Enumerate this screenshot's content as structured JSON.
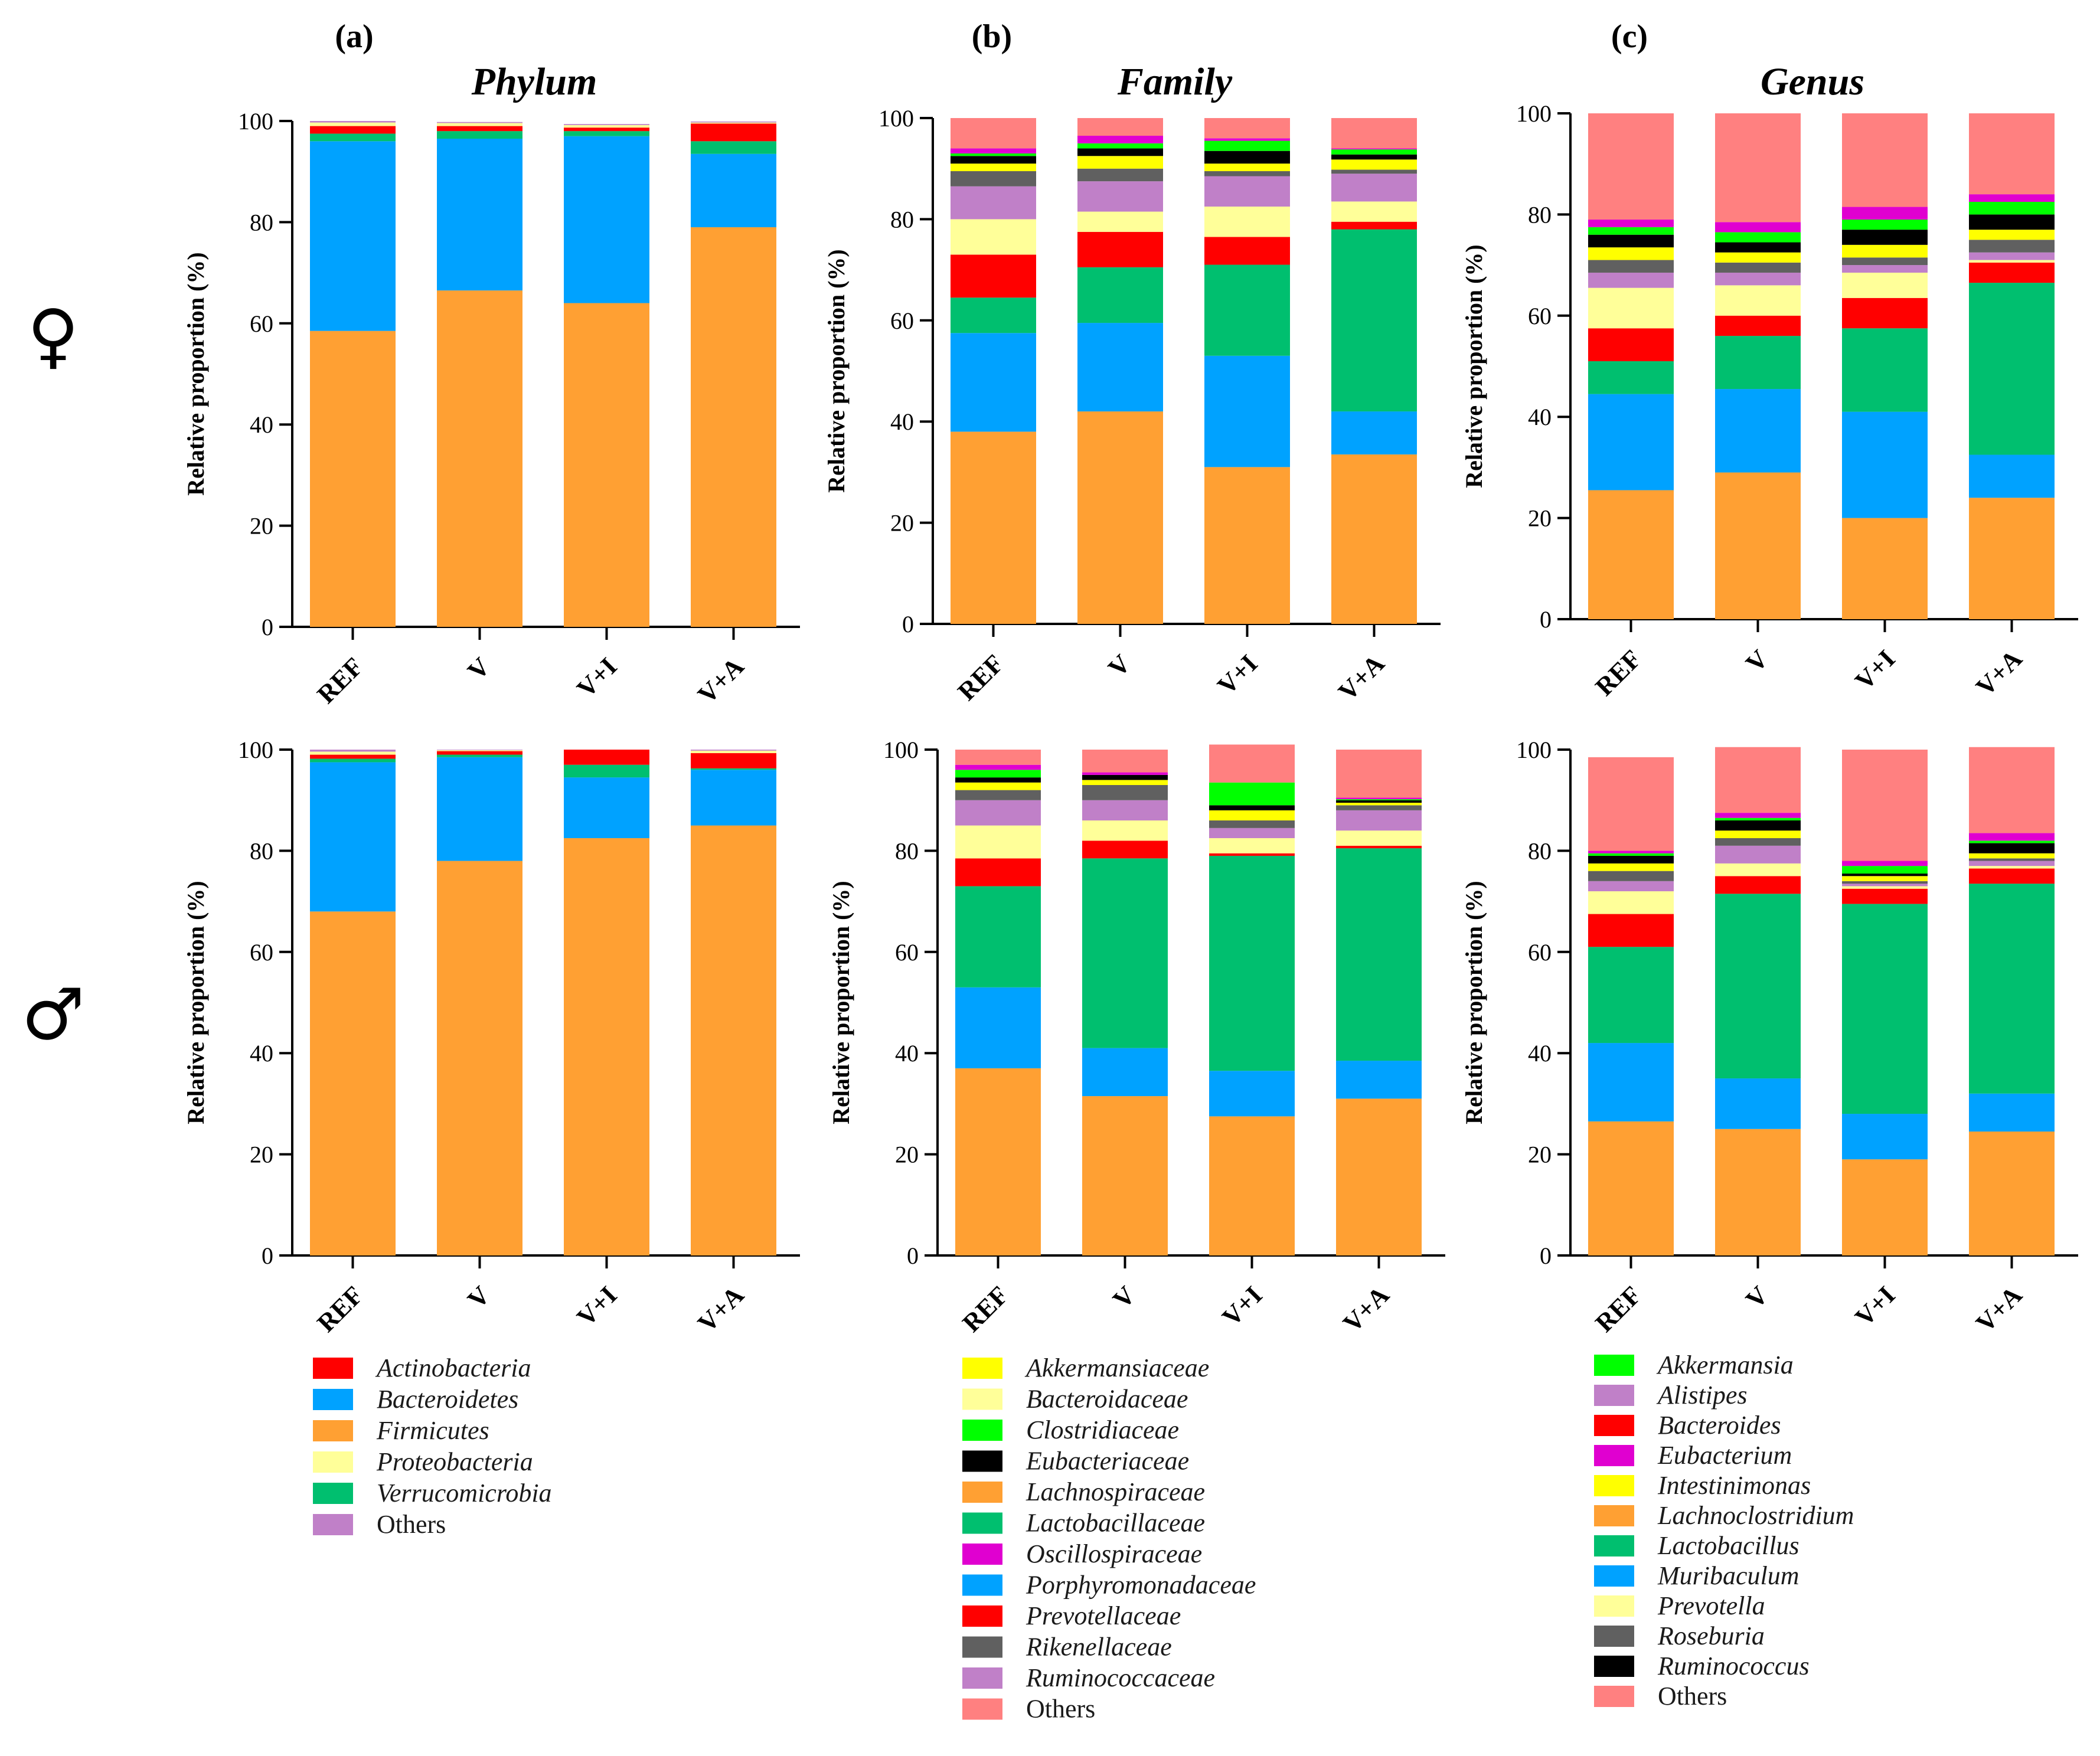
{
  "figure": {
    "panel_labels": [
      "(a)",
      "(b)",
      "(c)"
    ],
    "sex_symbols": [
      "♀",
      "♂"
    ]
  },
  "chart_data": [
    {
      "type": "bar",
      "stacked": true,
      "id": "phylum-female",
      "title": "Phylum",
      "panel": "(a)",
      "sex": "female",
      "ylabel": "Relative proportion (%)",
      "ylim": [
        0,
        100
      ],
      "yticks": [
        0,
        20,
        40,
        60,
        80,
        100
      ],
      "categories": [
        "REF",
        "V",
        "V+I",
        "V+A"
      ],
      "series": [
        {
          "name": "Firmicutes",
          "color": "#FFA033",
          "values": [
            58.5,
            66.5,
            64.0,
            79.0
          ]
        },
        {
          "name": "Bacteroidetes",
          "color": "#00A2FF",
          "values": [
            37.5,
            30.0,
            33.0,
            14.5
          ]
        },
        {
          "name": "Verrucomicrobia",
          "color": "#00BF6F",
          "values": [
            1.5,
            1.5,
            1.0,
            2.5
          ]
        },
        {
          "name": "Actinobacteria",
          "color": "#FF0000",
          "values": [
            1.5,
            1.0,
            0.7,
            3.5
          ]
        },
        {
          "name": "Proteobacteria",
          "color": "#FFFF99",
          "values": [
            0.7,
            0.6,
            0.5,
            0.2
          ]
        },
        {
          "name": "Others",
          "color": "#C080C8",
          "values": [
            0.3,
            0.2,
            0.2,
            0.2
          ]
        }
      ]
    },
    {
      "type": "bar",
      "stacked": true,
      "id": "family-female",
      "title": "Family",
      "panel": "(b)",
      "sex": "female",
      "ylabel": "Relative proportion (%)",
      "ylim": [
        0,
        100
      ],
      "yticks": [
        0,
        20,
        40,
        60,
        80,
        100
      ],
      "categories": [
        "REF",
        "V",
        "V+I",
        "V+A"
      ],
      "series": [
        {
          "name": "Lachnospiraceae",
          "color": "#FFA033",
          "values": [
            38.0,
            42.0,
            31.0,
            33.5
          ]
        },
        {
          "name": "Porphyromonadaceae",
          "color": "#00A2FF",
          "values": [
            19.5,
            17.5,
            22.0,
            8.5
          ]
        },
        {
          "name": "Lactobacillaceae",
          "color": "#00BF6F",
          "values": [
            7.0,
            11.0,
            18.0,
            36.0
          ]
        },
        {
          "name": "Prevotellaceae",
          "color": "#FF0000",
          "values": [
            8.5,
            7.0,
            5.5,
            1.5
          ]
        },
        {
          "name": "Bacteroidaceae",
          "color": "#FFFF99",
          "values": [
            7.0,
            4.0,
            6.0,
            4.0
          ]
        },
        {
          "name": "Ruminococcaceae",
          "color": "#C080C8",
          "values": [
            6.5,
            6.0,
            6.0,
            5.5
          ]
        },
        {
          "name": "Rikenellaceae",
          "color": "#606060",
          "values": [
            3.0,
            2.5,
            1.0,
            0.8
          ]
        },
        {
          "name": "Akkermansiaceae",
          "color": "#FFFF00",
          "values": [
            1.5,
            2.5,
            1.5,
            2.0
          ]
        },
        {
          "name": "Eubacteriaceae",
          "color": "#000000",
          "values": [
            1.5,
            1.5,
            2.5,
            1.0
          ]
        },
        {
          "name": "Clostridiaceae",
          "color": "#00FF00",
          "values": [
            0.5,
            1.0,
            2.0,
            1.0
          ]
        },
        {
          "name": "Oscillospiraceae",
          "color": "#E000D0",
          "values": [
            1.0,
            1.5,
            0.5,
            0.2
          ]
        },
        {
          "name": "Others",
          "color": "#FF8080",
          "values": [
            6.0,
            3.5,
            4.0,
            6.0
          ]
        }
      ]
    },
    {
      "type": "bar",
      "stacked": true,
      "id": "genus-female",
      "title": "Genus",
      "panel": "(c)",
      "sex": "female",
      "ylabel": "Relative proportion (%)",
      "ylim": [
        0,
        100
      ],
      "yticks": [
        0,
        20,
        40,
        60,
        80,
        100
      ],
      "categories": [
        "REF",
        "V",
        "V+I",
        "V+A"
      ],
      "series": [
        {
          "name": "Lachnoclostridium",
          "color": "#FFA033",
          "values": [
            25.5,
            29.0,
            20.0,
            24.0
          ]
        },
        {
          "name": "Muribaculum",
          "color": "#00A2FF",
          "values": [
            19.0,
            16.5,
            21.0,
            8.5
          ]
        },
        {
          "name": "Lactobacillus",
          "color": "#00BF6F",
          "values": [
            6.5,
            10.5,
            16.5,
            34.0
          ]
        },
        {
          "name": "Bacteroides",
          "color": "#FF0000",
          "values": [
            6.5,
            4.0,
            6.0,
            4.0
          ]
        },
        {
          "name": "Prevotella",
          "color": "#FFFF99",
          "values": [
            8.0,
            6.0,
            5.0,
            0.5
          ]
        },
        {
          "name": "Alistipes",
          "color": "#C080C8",
          "values": [
            3.0,
            2.5,
            1.5,
            1.5
          ]
        },
        {
          "name": "Roseburia",
          "color": "#606060",
          "values": [
            2.5,
            2.0,
            1.5,
            2.5
          ]
        },
        {
          "name": "Intestinimonas",
          "color": "#FFFF00",
          "values": [
            2.5,
            2.0,
            2.5,
            2.0
          ]
        },
        {
          "name": "Ruminococcus",
          "color": "#000000",
          "values": [
            2.5,
            2.0,
            3.0,
            3.0
          ]
        },
        {
          "name": "Akkermansia",
          "color": "#00FF00",
          "values": [
            1.5,
            2.0,
            2.0,
            2.5
          ]
        },
        {
          "name": "Eubacterium",
          "color": "#E000D0",
          "values": [
            1.5,
            2.0,
            2.5,
            1.5
          ]
        },
        {
          "name": "Others",
          "color": "#FF8080",
          "values": [
            21.0,
            21.5,
            18.5,
            16.0
          ]
        }
      ]
    },
    {
      "type": "bar",
      "stacked": true,
      "id": "phylum-male",
      "title": "",
      "panel": "",
      "sex": "male",
      "ylabel": "Relative proportion (%)",
      "ylim": [
        0,
        100
      ],
      "yticks": [
        0,
        20,
        40,
        60,
        80,
        100
      ],
      "categories": [
        "REF",
        "V",
        "V+I",
        "V+A"
      ],
      "series": [
        {
          "name": "Firmicutes",
          "color": "#FFA033",
          "values": [
            68.0,
            78.0,
            82.5,
            85.0
          ]
        },
        {
          "name": "Bacteroidetes",
          "color": "#00A2FF",
          "values": [
            29.5,
            20.5,
            12.0,
            11.0
          ]
        },
        {
          "name": "Verrucomicrobia",
          "color": "#00BF6F",
          "values": [
            0.7,
            0.5,
            2.5,
            0.3
          ]
        },
        {
          "name": "Actinobacteria",
          "color": "#FF0000",
          "values": [
            0.8,
            0.7,
            3.0,
            3.0
          ]
        },
        {
          "name": "Proteobacteria",
          "color": "#FFFF99",
          "values": [
            0.6,
            0.2,
            0.0,
            0.5
          ]
        },
        {
          "name": "Others",
          "color": "#C080C8",
          "values": [
            0.4,
            0.1,
            0.0,
            0.2
          ]
        }
      ]
    },
    {
      "type": "bar",
      "stacked": true,
      "id": "family-male",
      "title": "",
      "panel": "",
      "sex": "male",
      "ylabel": "Relative proportion (%)",
      "ylim": [
        0,
        100
      ],
      "yticks": [
        0,
        20,
        40,
        60,
        80,
        100
      ],
      "categories": [
        "REF",
        "V",
        "V+I",
        "V+A"
      ],
      "series": [
        {
          "name": "Lachnospiraceae",
          "color": "#FFA033",
          "values": [
            37.0,
            31.5,
            27.5,
            31.0
          ]
        },
        {
          "name": "Porphyromonadaceae",
          "color": "#00A2FF",
          "values": [
            16.0,
            9.5,
            9.0,
            7.5
          ]
        },
        {
          "name": "Lactobacillaceae",
          "color": "#00BF6F",
          "values": [
            20.0,
            37.5,
            42.5,
            42.0
          ]
        },
        {
          "name": "Prevotellaceae",
          "color": "#FF0000",
          "values": [
            5.5,
            3.5,
            0.5,
            0.5
          ]
        },
        {
          "name": "Bacteroidaceae",
          "color": "#FFFF99",
          "values": [
            6.5,
            4.0,
            3.0,
            3.0
          ]
        },
        {
          "name": "Ruminococcaceae",
          "color": "#C080C8",
          "values": [
            5.0,
            4.0,
            2.0,
            4.0
          ]
        },
        {
          "name": "Rikenellaceae",
          "color": "#606060",
          "values": [
            2.0,
            3.0,
            1.5,
            1.0
          ]
        },
        {
          "name": "Akkermansiaceae",
          "color": "#FFFF00",
          "values": [
            1.5,
            1.0,
            2.0,
            0.5
          ]
        },
        {
          "name": "Eubacteriaceae",
          "color": "#000000",
          "values": [
            1.0,
            1.0,
            1.0,
            0.5
          ]
        },
        {
          "name": "Clostridiaceae",
          "color": "#00FF00",
          "values": [
            1.5,
            0.0,
            4.5,
            0.2
          ]
        },
        {
          "name": "Oscillospiraceae",
          "color": "#E000D0",
          "values": [
            1.0,
            0.5,
            0.0,
            0.3
          ]
        },
        {
          "name": "Others",
          "color": "#FF8080",
          "values": [
            3.0,
            4.5,
            7.5,
            9.5
          ]
        }
      ]
    },
    {
      "type": "bar",
      "stacked": true,
      "id": "genus-male",
      "title": "",
      "panel": "",
      "sex": "male",
      "ylabel": "Relative proportion (%)",
      "ylim": [
        0,
        100
      ],
      "yticks": [
        0,
        20,
        40,
        60,
        80,
        100
      ],
      "categories": [
        "REF",
        "V",
        "V+I",
        "V+A"
      ],
      "series": [
        {
          "name": "Lachnoclostridium",
          "color": "#FFA033",
          "values": [
            26.5,
            25.0,
            19.0,
            24.5
          ]
        },
        {
          "name": "Muribaculum",
          "color": "#00A2FF",
          "values": [
            15.5,
            10.0,
            9.0,
            7.5
          ]
        },
        {
          "name": "Lactobacillus",
          "color": "#00BF6F",
          "values": [
            19.0,
            36.5,
            41.5,
            41.5
          ]
        },
        {
          "name": "Bacteroides",
          "color": "#FF0000",
          "values": [
            6.5,
            3.5,
            3.0,
            3.0
          ]
        },
        {
          "name": "Prevotella",
          "color": "#FFFF99",
          "values": [
            4.5,
            2.5,
            0.5,
            0.5
          ]
        },
        {
          "name": "Alistipes",
          "color": "#C080C8",
          "values": [
            2.0,
            3.5,
            0.5,
            1.0
          ]
        },
        {
          "name": "Roseburia",
          "color": "#606060",
          "values": [
            2.0,
            1.5,
            0.5,
            0.5
          ]
        },
        {
          "name": "Intestinimonas",
          "color": "#FFFF00",
          "values": [
            1.5,
            1.5,
            1.0,
            1.0
          ]
        },
        {
          "name": "Ruminococcus",
          "color": "#000000",
          "values": [
            1.5,
            2.0,
            0.5,
            2.0
          ]
        },
        {
          "name": "Akkermansia",
          "color": "#00FF00",
          "values": [
            0.5,
            0.5,
            1.5,
            0.5
          ]
        },
        {
          "name": "Eubacterium",
          "color": "#E000D0",
          "values": [
            0.5,
            1.0,
            1.0,
            1.5
          ]
        },
        {
          "name": "Others",
          "color": "#FF8080",
          "values": [
            18.5,
            13.0,
            22.0,
            17.0
          ]
        }
      ]
    }
  ],
  "legends": [
    {
      "id": "legend-phylum",
      "items": [
        {
          "label": "Actinobacteria",
          "color": "#FF0000",
          "italic": true
        },
        {
          "label": "Bacteroidetes",
          "color": "#00A2FF",
          "italic": true
        },
        {
          "label": "Firmicutes",
          "color": "#FFA033",
          "italic": true
        },
        {
          "label": "Proteobacteria",
          "color": "#FFFF99",
          "italic": true
        },
        {
          "label": "Verrucomicrobia",
          "color": "#00BF6F",
          "italic": true
        },
        {
          "label": "Others",
          "color": "#C080C8",
          "italic": false
        }
      ]
    },
    {
      "id": "legend-family",
      "items": [
        {
          "label": "Akkermansiaceae",
          "color": "#FFFF00",
          "italic": true
        },
        {
          "label": "Bacteroidaceae",
          "color": "#FFFF99",
          "italic": true
        },
        {
          "label": "Clostridiaceae",
          "color": "#00FF00",
          "italic": true
        },
        {
          "label": "Eubacteriaceae",
          "color": "#000000",
          "italic": true
        },
        {
          "label": "Lachnospiraceae",
          "color": "#FFA033",
          "italic": true
        },
        {
          "label": "Lactobacillaceae",
          "color": "#00BF6F",
          "italic": true
        },
        {
          "label": "Oscillospiraceae",
          "color": "#E000D0",
          "italic": true
        },
        {
          "label": "Porphyromonadaceae",
          "color": "#00A2FF",
          "italic": true
        },
        {
          "label": "Prevotellaceae",
          "color": "#FF0000",
          "italic": true
        },
        {
          "label": "Rikenellaceae",
          "color": "#606060",
          "italic": true
        },
        {
          "label": "Ruminococcaceae",
          "color": "#C080C8",
          "italic": true
        },
        {
          "label": "Others",
          "color": "#FF8080",
          "italic": false
        }
      ]
    },
    {
      "id": "legend-genus",
      "items": [
        {
          "label": "Akkermansia",
          "color": "#00FF00",
          "italic": true
        },
        {
          "label": "Alistipes",
          "color": "#C080C8",
          "italic": true
        },
        {
          "label": "Bacteroides",
          "color": "#FF0000",
          "italic": true
        },
        {
          "label": "Eubacterium",
          "color": "#E000D0",
          "italic": true
        },
        {
          "label": "Intestinimonas",
          "color": "#FFFF00",
          "italic": true
        },
        {
          "label": "Lachnoclostridium",
          "color": "#FFA033",
          "italic": true
        },
        {
          "label": "Lactobacillus",
          "color": "#00BF6F",
          "italic": true
        },
        {
          "label": "Muribaculum",
          "color": "#00A2FF",
          "italic": true
        },
        {
          "label": "Prevotella",
          "color": "#FFFF99",
          "italic": true
        },
        {
          "label": "Roseburia",
          "color": "#606060",
          "italic": true
        },
        {
          "label": "Ruminococcus",
          "color": "#000000",
          "italic": true
        },
        {
          "label": "Others",
          "color": "#FF8080",
          "italic": false
        }
      ]
    }
  ]
}
